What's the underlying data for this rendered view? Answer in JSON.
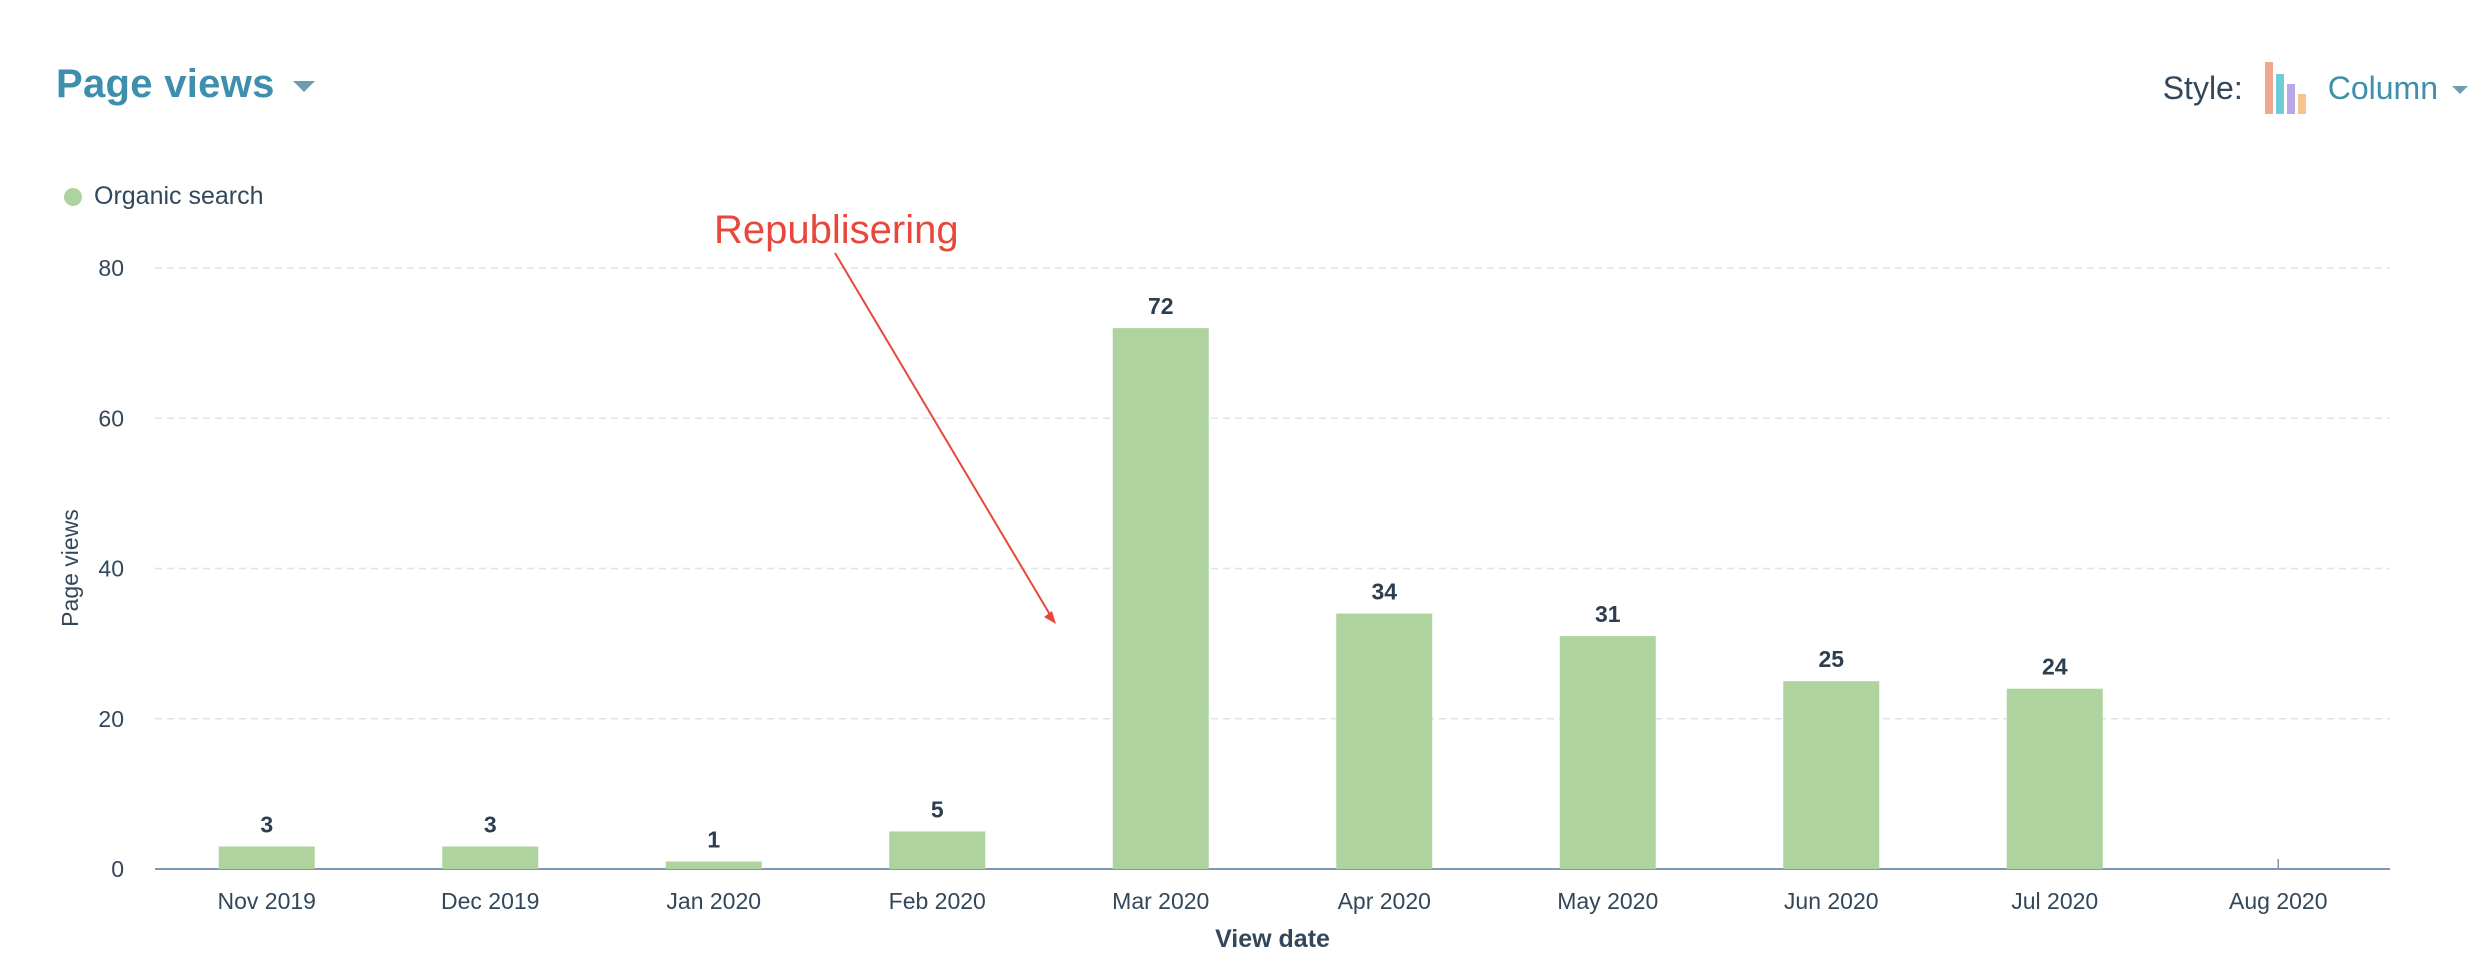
{
  "header": {
    "title": "Page views",
    "style_label": "Style:",
    "style_value": "Column",
    "style_icon_colors": [
      "#f2a58f",
      "#6ccdd8",
      "#b9a8e6",
      "#f6c58d"
    ]
  },
  "colors": {
    "bar": "#aed39e",
    "grid": "#dfe3eb",
    "axis": "#7c98b6",
    "annotation": "#e8483b",
    "title": "#3d8fad"
  },
  "chart_data": {
    "type": "bar",
    "title": "Page views",
    "xlabel": "View date",
    "ylabel": "Page views",
    "ylim": [
      0,
      80
    ],
    "yticks": [
      0,
      20,
      40,
      60,
      80
    ],
    "categories": [
      "Nov 2019",
      "Dec 2019",
      "Jan 2020",
      "Feb 2020",
      "Mar 2020",
      "Apr 2020",
      "May 2020",
      "Jun 2020",
      "Jul 2020",
      "Aug 2020"
    ],
    "series": [
      {
        "name": "Organic search",
        "values": [
          3,
          3,
          1,
          5,
          72,
          34,
          31,
          25,
          24,
          null
        ]
      }
    ],
    "legend": "top-left",
    "grid": true,
    "annotation": {
      "text": "Republisering",
      "points_to": "Mar 2020"
    }
  }
}
